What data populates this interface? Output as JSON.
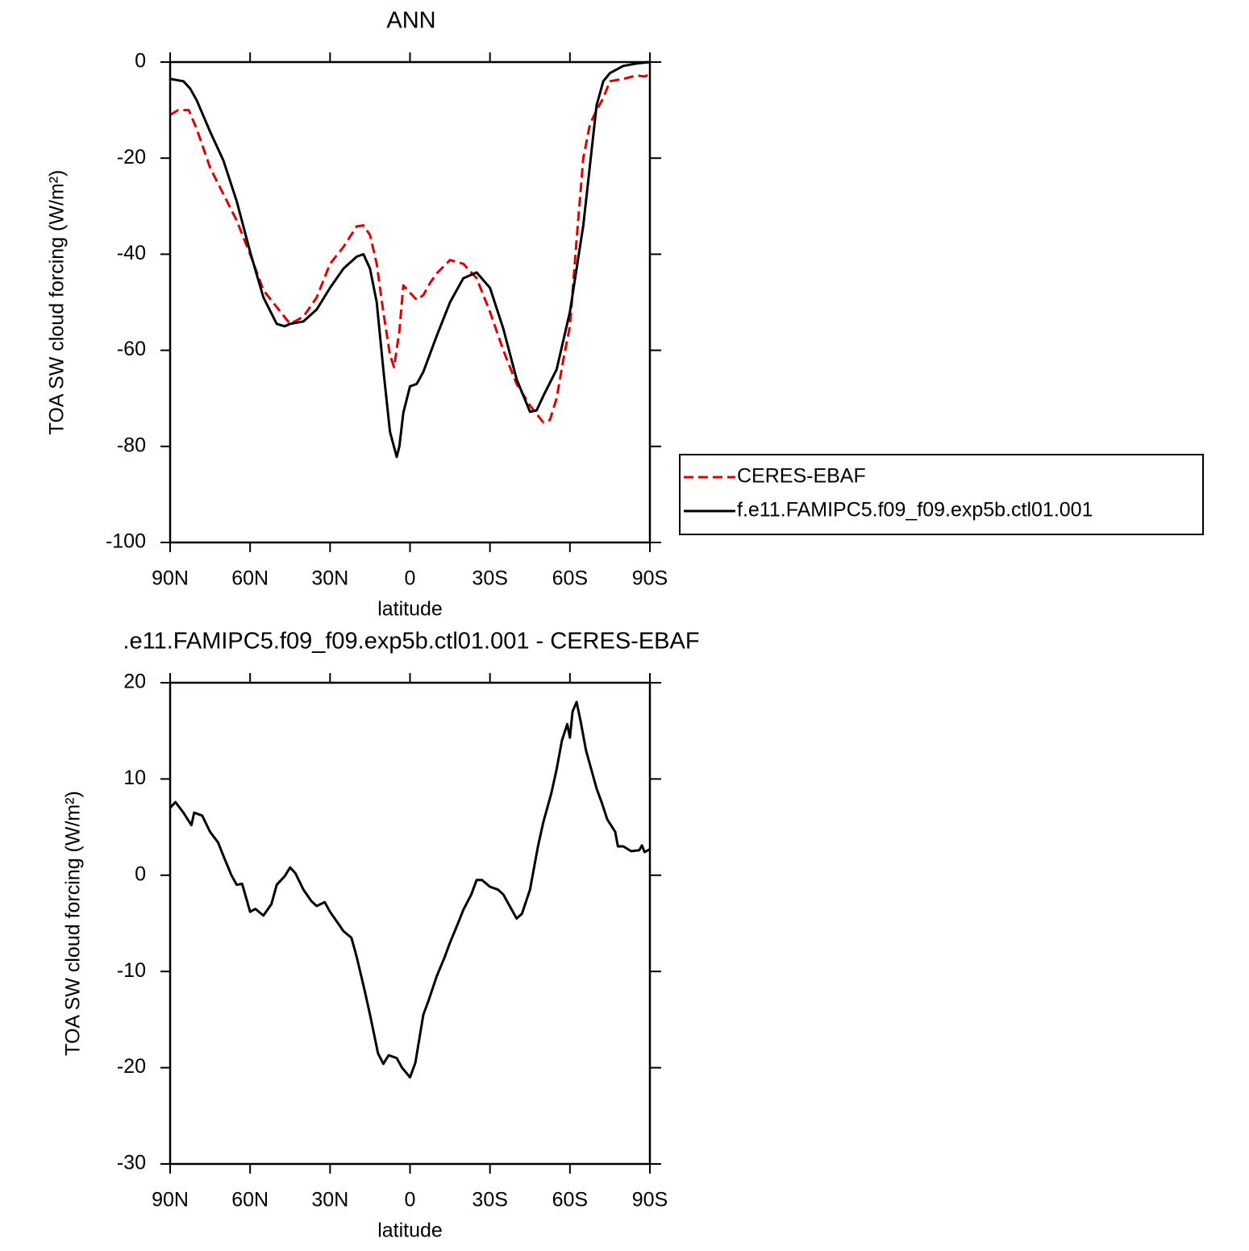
{
  "chart_data": [
    {
      "type": "line",
      "title": "ANN",
      "xlabel": "latitude",
      "ylabel": "TOA SW cloud forcing (W/m²)",
      "xlim": [
        90,
        -90
      ],
      "xticks": [
        {
          "value": 90,
          "label": "90N"
        },
        {
          "value": 60,
          "label": "60N"
        },
        {
          "value": 30,
          "label": "30N"
        },
        0,
        {
          "value": -30,
          "label": "30S"
        },
        {
          "value": -60,
          "label": "60S"
        },
        {
          "value": -90,
          "label": "90S"
        }
      ],
      "ylim": [
        -100,
        0
      ],
      "yticks": [
        0,
        -20,
        -40,
        -60,
        -80,
        -100
      ],
      "legend": "right",
      "series": [
        {
          "name": "CERES-EBAF",
          "color": "#e00000",
          "dashed": true,
          "x": [
            90,
            87,
            83,
            80,
            75,
            70,
            65,
            60,
            55,
            50,
            45,
            40,
            35,
            30,
            25,
            20,
            17.5,
            15,
            12.5,
            10,
            7.5,
            6,
            4,
            2.5,
            0,
            -2.5,
            -5,
            -7.5,
            -10,
            -15,
            -20,
            -25,
            -30,
            -35,
            -40,
            -45,
            -50,
            -52.5,
            -55,
            -57.5,
            -60,
            -62.5,
            -65,
            -67.5,
            -70,
            -72.5,
            -75,
            -80,
            -85,
            -88,
            -90
          ],
          "values": [
            -11,
            -10,
            -10,
            -14,
            -22,
            -27.5,
            -33,
            -40,
            -47.5,
            -51,
            -54.5,
            -53,
            -49,
            -42,
            -38.5,
            -34.2,
            -34,
            -36,
            -42,
            -52,
            -61,
            -63.5,
            -56,
            -46.5,
            -48,
            -49.5,
            -48.5,
            -46,
            -44,
            -41.2,
            -42,
            -45,
            -52,
            -60,
            -67,
            -71.5,
            -75,
            -74.5,
            -70,
            -62,
            -55,
            -37,
            -20,
            -13,
            -10,
            -7.5,
            -4,
            -3.5,
            -2.8,
            -3,
            -2.5
          ]
        },
        {
          "name": "f.e11.FAMIPC5.f09_f09.exp5b.ctl01.001",
          "color": "#000000",
          "dashed": false,
          "x": [
            90,
            85,
            82.5,
            80,
            75,
            70,
            65,
            60,
            55,
            50,
            47,
            45,
            40,
            35,
            30,
            25,
            20,
            17.5,
            15,
            12.5,
            10,
            7.5,
            5,
            4,
            2.5,
            0,
            -2.5,
            -5,
            -10,
            -15,
            -20,
            -25,
            -30,
            -35,
            -40,
            -45,
            -47.5,
            -50,
            -55,
            -60,
            -65,
            -70,
            -72.5,
            -75,
            -80,
            -85,
            -90
          ],
          "values": [
            -3.5,
            -4,
            -5.5,
            -8,
            -14.5,
            -20.5,
            -29,
            -39.5,
            -49,
            -54.5,
            -55,
            -54.5,
            -54,
            -51.5,
            -47,
            -43,
            -40.5,
            -40,
            -43,
            -50,
            -64,
            -77,
            -82.2,
            -80,
            -73,
            -67.5,
            -67,
            -64.5,
            -57,
            -50,
            -45,
            -43.8,
            -47,
            -55.5,
            -66,
            -72.8,
            -72.5,
            -69.5,
            -64,
            -52,
            -34,
            -9,
            -4,
            -2.3,
            -0.8,
            -0.3,
            0
          ]
        }
      ]
    },
    {
      "type": "line",
      "title": ".e11.FAMIPC5.f09_f09.exp5b.ctl01.001 - CERES-EBAF",
      "xlabel": "latitude",
      "ylabel": "TOA SW cloud forcing (W/m²)",
      "xlim": [
        90,
        -90
      ],
      "xticks": [
        {
          "value": 90,
          "label": "90N"
        },
        {
          "value": 60,
          "label": "60N"
        },
        {
          "value": 30,
          "label": "30N"
        },
        0,
        {
          "value": -30,
          "label": "30S"
        },
        {
          "value": -60,
          "label": "60S"
        },
        {
          "value": -90,
          "label": "90S"
        }
      ],
      "ylim": [
        -30,
        20
      ],
      "yticks": [
        20,
        10,
        0,
        -10,
        -20,
        -30
      ],
      "series": [
        {
          "color": "#000000",
          "dashed": false,
          "x": [
            90,
            88,
            85,
            82,
            81,
            78,
            75,
            72,
            70,
            67,
            65,
            63,
            60,
            58,
            55,
            52,
            50,
            47,
            45,
            43,
            40,
            37,
            35,
            32,
            30,
            27,
            25,
            22,
            20,
            17,
            15,
            12,
            10,
            8,
            5,
            3,
            0,
            -2,
            -5,
            -7,
            -10,
            -13,
            -15,
            -18,
            -20,
            -23,
            -25,
            -27,
            -30,
            -33,
            -35,
            -37,
            -40,
            -42,
            -45,
            -48,
            -50,
            -53,
            -55,
            -57,
            -59,
            -60,
            -61,
            -62.5,
            -64,
            -66,
            -68,
            -70,
            -72,
            -74,
            -77,
            -78,
            -80,
            -83,
            -86,
            -87,
            -88,
            -90
          ],
          "values": [
            7,
            7.6,
            6.5,
            5.2,
            6.5,
            6.2,
            4.5,
            3.4,
            2,
            0,
            -1,
            -0.9,
            -3.8,
            -3.5,
            -4.2,
            -3,
            -1,
            -0.1,
            0.8,
            0.2,
            -1.5,
            -2.7,
            -3.2,
            -2.8,
            -3.8,
            -5,
            -5.8,
            -6.5,
            -8.5,
            -12,
            -14.5,
            -18.5,
            -19.6,
            -18.7,
            -19,
            -20,
            -21,
            -19.5,
            -14.5,
            -13,
            -10.5,
            -8.5,
            -7,
            -5,
            -3.6,
            -2,
            -0.5,
            -0.5,
            -1.2,
            -1.5,
            -2,
            -3,
            -4.5,
            -4,
            -1.5,
            3,
            5.5,
            8.5,
            11,
            14,
            15.7,
            14.3,
            17,
            18,
            16,
            13,
            11,
            9,
            7.5,
            5.8,
            4.5,
            3,
            3,
            2.5,
            2.6,
            3.1,
            2.4,
            2.7
          ]
        }
      ]
    }
  ]
}
